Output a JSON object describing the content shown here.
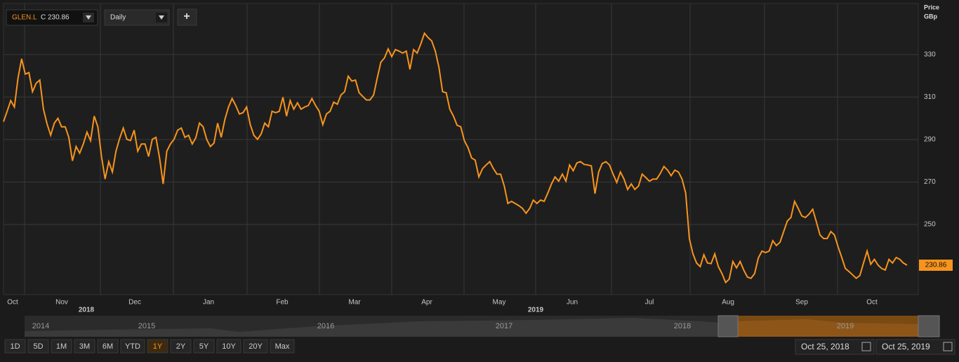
{
  "toolbar": {
    "symbol": "GLEN.L",
    "close_label": "C 230.86",
    "interval": "Daily",
    "add": "+"
  },
  "chart_data": {
    "type": "line",
    "y_axis_title": [
      "Price",
      "GBp"
    ],
    "x_labels": [
      "Oct",
      "Nov",
      "Dec",
      "Jan",
      "Feb",
      "Mar",
      "Apr",
      "May",
      "Jun",
      "Jul",
      "Aug",
      "Sep",
      "Oct"
    ],
    "year_labels": [
      null,
      "2018",
      null,
      null,
      null,
      null,
      null,
      "2019",
      null,
      null,
      null,
      null,
      null
    ],
    "series": [
      {
        "name": "GLEN.L",
        "color": "#f7941d",
        "values": [
          298.4,
          303.3,
          308.3,
          305.3,
          319,
          328,
          320.8,
          321.5,
          312.5,
          316.5,
          318,
          304.3,
          297.4,
          292,
          297.7,
          300,
          296,
          296,
          291,
          280,
          286.7,
          283.6,
          287.9,
          293.5,
          289.5,
          301,
          296,
          282,
          271.4,
          279.6,
          274.7,
          284.5,
          290.5,
          295.4,
          290.1,
          289.5,
          294.4,
          284.5,
          287.9,
          287.9,
          282,
          290.1,
          291,
          281.3,
          269.1,
          284.5,
          287.9,
          290.1,
          294.4,
          295.4,
          291,
          292,
          287.9,
          290.8,
          297.7,
          296,
          290.1,
          286.7,
          288.3,
          297.7,
          291,
          299.4,
          305.3,
          309.3,
          306,
          302,
          302.6,
          305.3,
          297,
          292,
          290.1,
          292.6,
          297.7,
          296,
          303.3,
          302.6,
          303.3,
          309.9,
          301,
          308.3,
          304.3,
          307.3,
          304.3,
          305.3,
          306,
          309.3,
          306,
          303.3,
          297,
          302,
          303.3,
          307.6,
          306.6,
          311,
          312.5,
          319.8,
          317.5,
          318,
          312,
          310.3,
          308.6,
          308.6,
          311,
          319,
          326.4,
          328.4,
          332.6,
          329,
          332.3,
          331.6,
          330.7,
          331.6,
          323,
          332.3,
          330.7,
          335,
          340,
          338,
          336.4,
          331.6,
          324,
          312.5,
          312,
          304.3,
          301,
          296.7,
          296,
          289.5,
          286.2,
          281.3,
          280.3,
          272.4,
          276.3,
          278,
          279.6,
          276.3,
          273.7,
          273.7,
          268.1,
          259.9,
          260.9,
          259.9,
          258.9,
          257.6,
          255.3,
          257.6,
          261.5,
          259.9,
          261.5,
          260.9,
          264.8,
          269.1,
          272.4,
          270.4,
          273.7,
          270.4,
          278,
          275.3,
          279,
          279.6,
          278.3,
          278,
          277.6,
          264.5,
          274.7,
          278.7,
          279.6,
          278,
          273.7,
          269.8,
          274.7,
          271.4,
          266.5,
          269.1,
          266.5,
          268.1,
          273.7,
          272.1,
          270.4,
          271.4,
          271.4,
          274,
          277.3,
          275.6,
          273,
          275.6,
          274.7,
          271.4,
          264.8,
          243.4,
          236.2,
          231.9,
          230.2,
          235.8,
          231.9,
          231.6,
          236.2,
          230.2,
          226.9,
          222.7,
          224.3,
          232.6,
          229.6,
          232.6,
          228.6,
          225.3,
          224.7,
          226.9,
          234.2,
          237.5,
          236.8,
          237.5,
          242.4,
          240.1,
          241.7,
          246.7,
          251.6,
          253.3,
          260.9,
          257.6,
          254,
          253.3,
          254.9,
          257.2,
          251.3,
          245.1,
          243.4,
          243.4,
          246.7,
          245.1,
          239.5,
          234.5,
          229.3,
          227.9,
          226.3,
          224.7,
          226,
          231.9,
          237.5,
          231.3,
          233.6,
          230.9,
          229.3,
          228.6,
          233.6,
          231.9,
          234.5,
          233.6,
          231.9,
          230.86
        ]
      }
    ],
    "last_value": 230.86,
    "ylim": [
      217,
      354
    ],
    "yticks": [
      250,
      270,
      290,
      310,
      330
    ],
    "grid": true
  },
  "navigator": {
    "years": [
      "2014",
      "2015",
      "2016",
      "2017",
      "2018",
      "2019"
    ]
  },
  "range_buttons": [
    "1D",
    "5D",
    "1M",
    "3M",
    "6M",
    "YTD",
    "1Y",
    "2Y",
    "5Y",
    "10Y",
    "20Y",
    "Max"
  ],
  "active_range": "1Y",
  "date_range": {
    "from": "Oct 25, 2018",
    "to": "Oct 25, 2019"
  }
}
